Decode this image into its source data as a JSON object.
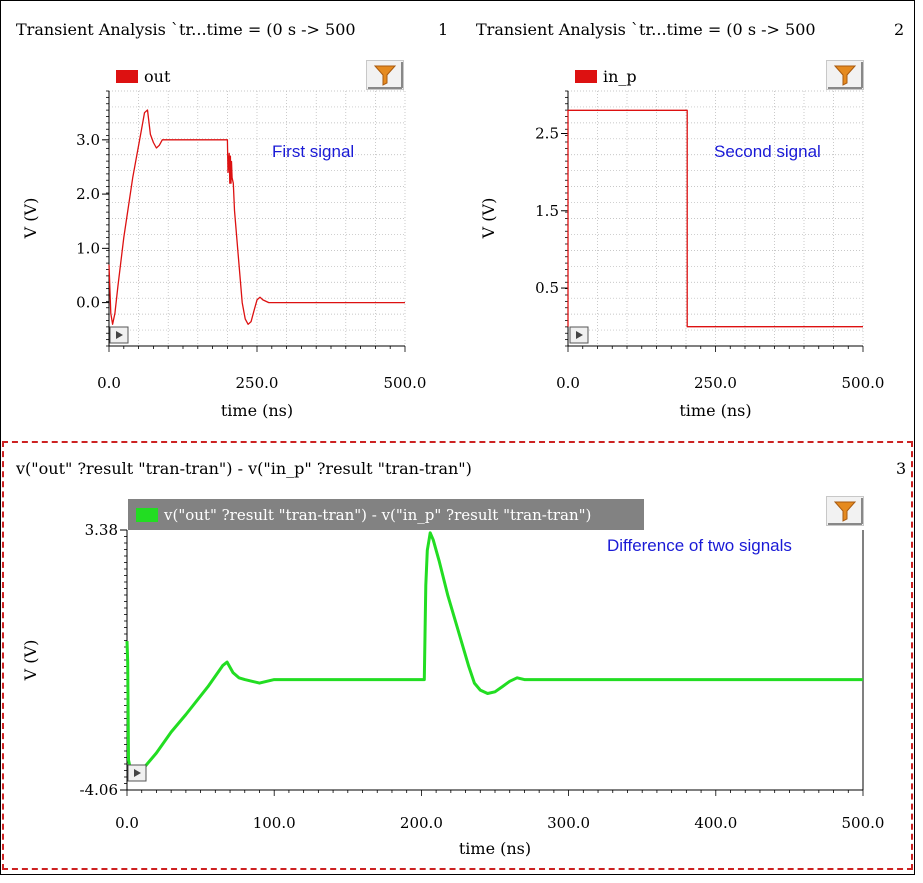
{
  "panels": [
    {
      "title": "Transient Analysis `tr...time = (0 s -> 500",
      "number": "1"
    },
    {
      "title": "Transient Analysis `tr...time = (0 s -> 500",
      "number": "2"
    },
    {
      "title": "v(\"out\" ?result \"tran-tran\") - v(\"in_p\" ?result \"tran-tran\")",
      "number": "3"
    }
  ],
  "colors": {
    "trace_red": "#dd1111",
    "trace_green": "#22dd22",
    "annotation": "#1a1ad6",
    "selection": "#cc2222"
  },
  "icons": [
    "filter-icon",
    "play-icon"
  ],
  "chart_data": [
    {
      "type": "line",
      "legend": [
        "out"
      ],
      "annotation": "First signal",
      "xlabel": "time (ns)",
      "ylabel": "V (V)",
      "xlim": [
        0,
        500
      ],
      "ylim": [
        -0.8,
        3.9
      ],
      "xticks": [
        "0.0",
        "250.0",
        "500.0"
      ],
      "yticks": [
        "0.0",
        "1.0",
        "2.0",
        "3.0"
      ],
      "grid": true,
      "series": [
        {
          "name": "out",
          "x": [
            0,
            3,
            6,
            10,
            15,
            25,
            40,
            55,
            60,
            65,
            70,
            75,
            80,
            85,
            90,
            100,
            120,
            150,
            180,
            200,
            201,
            203,
            204,
            205,
            206,
            207,
            208,
            210,
            212,
            218,
            225,
            230,
            235,
            240,
            245,
            250,
            255,
            260,
            270,
            280,
            300,
            350,
            400,
            450,
            500
          ],
          "y": [
            0.7,
            -0.2,
            -0.4,
            -0.2,
            0.3,
            1.2,
            2.3,
            3.2,
            3.5,
            3.55,
            3.1,
            2.95,
            2.85,
            2.9,
            3.0,
            3.0,
            3.0,
            3.0,
            3.0,
            3.0,
            2.4,
            2.75,
            2.2,
            2.7,
            2.2,
            2.6,
            2.3,
            2.2,
            1.7,
            0.9,
            0.0,
            -0.3,
            -0.4,
            -0.35,
            -0.15,
            0.05,
            0.1,
            0.05,
            0.0,
            0.0,
            0.0,
            0.0,
            0.0,
            0.0,
            0.0
          ]
        }
      ]
    },
    {
      "type": "line",
      "legend": [
        "in_p"
      ],
      "annotation": "Second signal",
      "xlabel": "time (ns)",
      "ylabel": "V (V)",
      "xlim": [
        0,
        500
      ],
      "ylim": [
        -0.25,
        3.05
      ],
      "xticks": [
        "0.0",
        "250.0",
        "500.0"
      ],
      "yticks": [
        "0.5",
        "1.5",
        "2.5"
      ],
      "grid": true,
      "series": [
        {
          "name": "in_p",
          "x": [
            0,
            0,
            202,
            202,
            500
          ],
          "y": [
            0.0,
            2.8,
            2.8,
            0.0,
            0.0
          ]
        }
      ]
    },
    {
      "type": "line",
      "legend": [
        "v(\"out\" ?result \"tran-tran\") - v(\"in_p\" ?result \"tran-tran\")"
      ],
      "annotation": "Difference of two signals",
      "xlabel": "time (ns)",
      "ylabel": "V (V)",
      "xlim": [
        0,
        500
      ],
      "ylim": [
        -4.06,
        3.38
      ],
      "xticks": [
        "0.0",
        "100.0",
        "200.0",
        "300.0",
        "400.0",
        "500.0"
      ],
      "yticks": [
        "-4.06",
        "3.38"
      ],
      "grid": false,
      "series": [
        {
          "name": "v(\"out\" ?result \"tran-tran\") - v(\"in_p\" ?result \"tran-tran\")",
          "x": [
            0,
            0.5,
            1,
            3,
            6,
            10,
            20,
            30,
            40,
            55,
            65,
            68,
            72,
            76,
            80,
            85,
            90,
            95,
            100,
            150,
            200,
            202,
            203,
            204,
            205,
            206,
            208,
            212,
            218,
            225,
            232,
            236,
            240,
            245,
            250,
            255,
            260,
            265,
            270,
            300,
            400,
            500
          ],
          "y": [
            0.2,
            -0.4,
            -3.2,
            -3.6,
            -3.6,
            -3.5,
            -3.0,
            -2.4,
            -1.9,
            -1.1,
            -0.5,
            -0.4,
            -0.7,
            -0.85,
            -0.9,
            -0.95,
            -1.0,
            -0.95,
            -0.9,
            -0.9,
            -0.9,
            -0.9,
            1.8,
            2.8,
            3.05,
            3.3,
            3.1,
            2.5,
            1.5,
            0.5,
            -0.5,
            -1.0,
            -1.2,
            -1.3,
            -1.25,
            -1.1,
            -0.95,
            -0.85,
            -0.9,
            -0.9,
            -0.9,
            -0.9
          ]
        }
      ]
    }
  ]
}
